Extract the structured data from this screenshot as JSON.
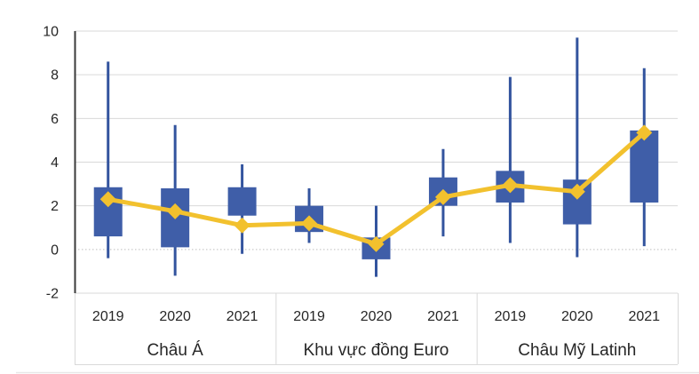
{
  "chart_data": {
    "type": "box-whisker-with-line",
    "title": "",
    "y_axis": {
      "min": -2,
      "max": 10,
      "step": 2,
      "tick_labels": [
        "10",
        "8",
        "6",
        "4",
        "2",
        "0",
        "-2"
      ],
      "zero_gridline_style": "dotted",
      "grid": true
    },
    "x_axis": {
      "level1_years": [
        "2019",
        "2020",
        "2021"
      ],
      "level2_groups": [
        "Châu Á",
        "Khu vực đồng Euro",
        "Châu Mỹ Latinh"
      ]
    },
    "legend": {
      "visible": false
    },
    "groups": [
      {
        "label": "Châu Á",
        "years": [
          "2019",
          "2020",
          "2021"
        ],
        "boxes": [
          {
            "year": "2019",
            "whisker_low": -0.4,
            "box_low": 0.6,
            "box_high": 2.85,
            "whisker_high": 8.6,
            "marker": 2.3
          },
          {
            "year": "2020",
            "whisker_low": -1.2,
            "box_low": 0.1,
            "box_high": 2.8,
            "whisker_high": 5.7,
            "marker": 1.75
          },
          {
            "year": "2021",
            "whisker_low": -0.2,
            "box_low": 1.55,
            "box_high": 2.85,
            "whisker_high": 3.9,
            "marker": 1.1
          }
        ]
      },
      {
        "label": "Khu vực đồng Euro",
        "years": [
          "2019",
          "2020",
          "2021"
        ],
        "boxes": [
          {
            "year": "2019",
            "whisker_low": 0.3,
            "box_low": 0.8,
            "box_high": 2.0,
            "whisker_high": 2.8,
            "marker": 1.2
          },
          {
            "year": "2020",
            "whisker_low": -1.25,
            "box_low": -0.45,
            "box_high": 0.55,
            "whisker_high": 2.0,
            "marker": 0.25
          },
          {
            "year": "2021",
            "whisker_low": 0.6,
            "box_low": 2.0,
            "box_high": 3.3,
            "whisker_high": 4.6,
            "marker": 2.4
          }
        ]
      },
      {
        "label": "Châu Mỹ Latinh",
        "years": [
          "2019",
          "2020",
          "2021"
        ],
        "boxes": [
          {
            "year": "2019",
            "whisker_low": 0.3,
            "box_low": 2.15,
            "box_high": 3.6,
            "whisker_high": 7.9,
            "marker": 2.95
          },
          {
            "year": "2020",
            "whisker_low": -0.35,
            "box_low": 1.15,
            "box_high": 3.2,
            "whisker_high": 9.7,
            "marker": 2.65
          },
          {
            "year": "2021",
            "whisker_low": 0.15,
            "box_low": 2.15,
            "box_high": 5.45,
            "whisker_high": 8.3,
            "marker": 5.35
          }
        ]
      }
    ],
    "colors": {
      "box_fill": "#3F5EA8",
      "whisker": "#33549E",
      "trend_line": "#F2C12E",
      "marker": "#F2C12E",
      "gridline": "#D9D9D9",
      "zero_gridline": "#BFBFBF",
      "axis_line": "#3A3A3A",
      "separator": "#D9D9D9",
      "text": "#262626",
      "bottom_divider": "#E7E7E7"
    }
  }
}
